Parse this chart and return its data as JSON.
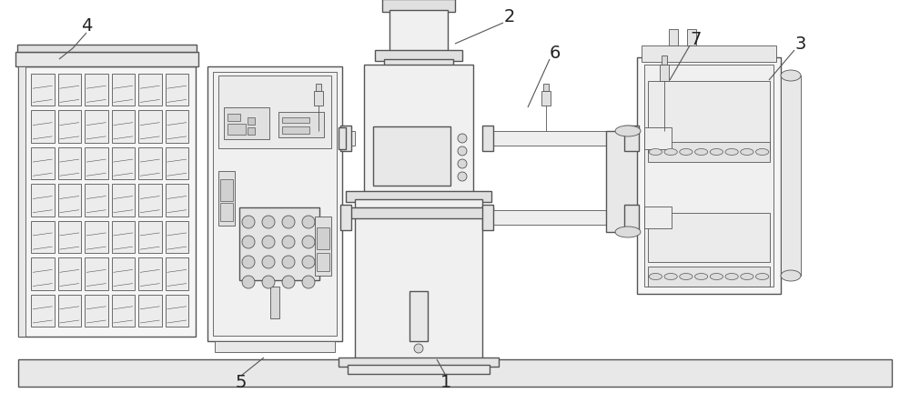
{
  "bg_color": "#ffffff",
  "line_color": "#555555",
  "lw": 1.0,
  "tlw": 0.6,
  "label_fontsize": 14,
  "label_color": "#222222"
}
